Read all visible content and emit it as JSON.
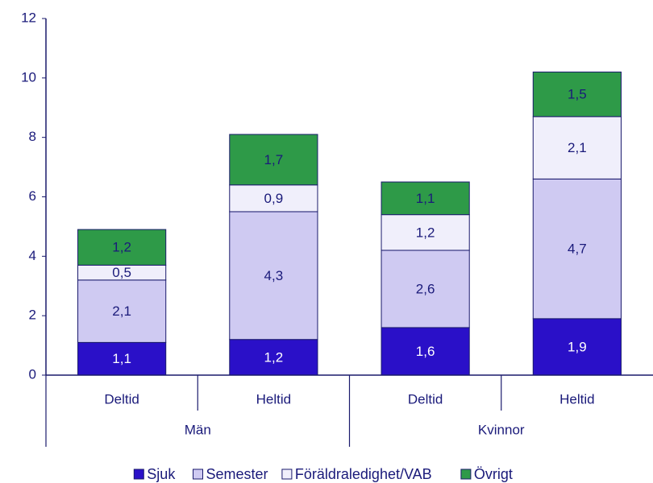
{
  "chart_data": {
    "type": "stacked-bar",
    "categories": [
      "Deltid",
      "Heltid",
      "Deltid",
      "Heltid"
    ],
    "groups": [
      "Män",
      "Kvinnor"
    ],
    "series": [
      {
        "name": "Sjuk",
        "color": "#2a10c8",
        "values": [
          1.1,
          1.2,
          1.6,
          1.9
        ],
        "value_labels": [
          "1,1",
          "1,2",
          "1,6",
          "1,9"
        ]
      },
      {
        "name": "Semester",
        "color": "#cfcaf2",
        "values": [
          2.1,
          4.3,
          2.6,
          4.7
        ],
        "value_labels": [
          "2,1",
          "4,3",
          "2,6",
          "4,7"
        ]
      },
      {
        "name": "Föräldraledighet/VAB",
        "color": "#f0effb",
        "values": [
          0.5,
          0.9,
          1.2,
          2.1
        ],
        "value_labels": [
          "0,5",
          "0,9",
          "1,2",
          "2,1"
        ]
      },
      {
        "name": "Övrigt",
        "color": "#2e9a48",
        "values": [
          1.2,
          1.7,
          1.1,
          1.5
        ],
        "value_labels": [
          "1,2",
          "1,7",
          "1,1",
          "1,5"
        ]
      }
    ],
    "ylim": [
      0,
      12
    ],
    "yticks": [
      0,
      2,
      4,
      6,
      8,
      10,
      12
    ],
    "legend": "bottom"
  }
}
